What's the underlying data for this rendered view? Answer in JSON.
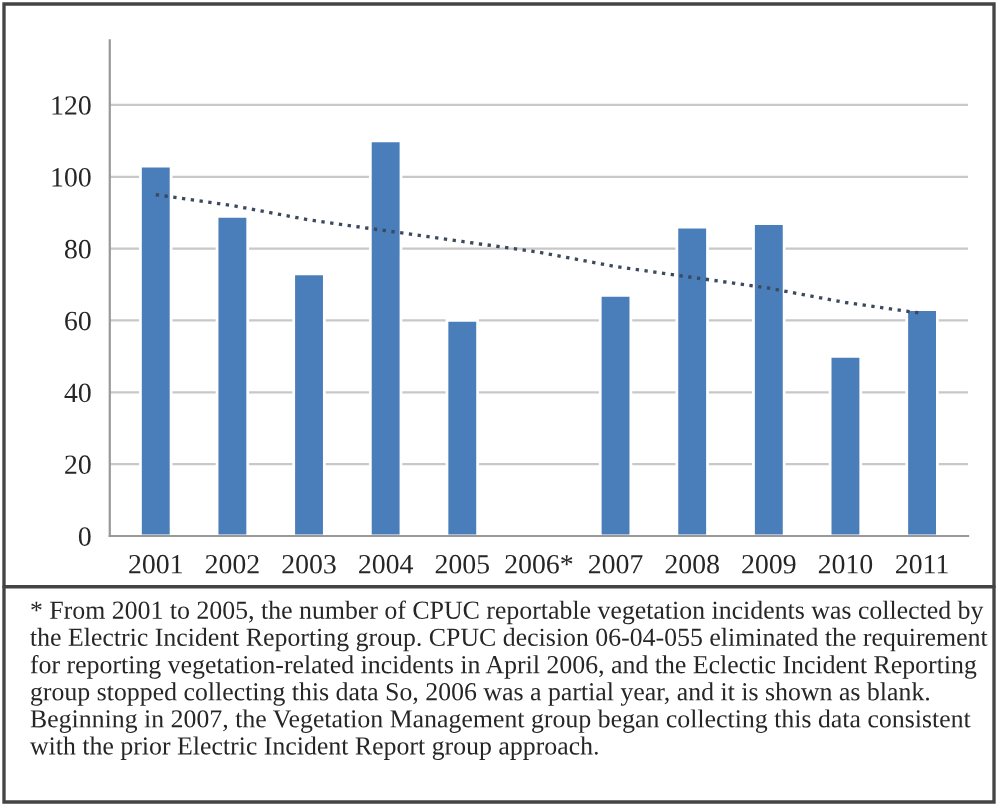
{
  "chart_data": {
    "type": "bar",
    "categories": [
      "2001",
      "2002",
      "2003",
      "2004",
      "2005",
      "2006*",
      "2007",
      "2008",
      "2009",
      "2010",
      "2011"
    ],
    "series": [
      {
        "color": "#4a7ebb",
        "values": [
          103,
          89,
          73,
          110,
          60,
          null,
          67,
          86,
          87,
          50,
          63
        ]
      },
      {
        "type": "line",
        "color": "#3b4a5e",
        "line_style": "dotted",
        "values": [
          95,
          92,
          88,
          85,
          82,
          79,
          75,
          72,
          69,
          65,
          62
        ]
      }
    ],
    "ylim": [
      0,
      138
    ],
    "yticks": [
      0,
      20,
      40,
      60,
      80,
      100,
      120
    ],
    "grid": "y",
    "legend": false,
    "annotations": [
      "* From 2001 to 2005, the number of CPUC reportable vegetation incidents was collected by the Electric Incident Reporting group. CPUC decision 06-04-055 eliminated the requirement for reporting vegetation-related incidents in April 2006, and the Eclectic Incident Reporting group stopped collecting this data So, 2006 was a partial year, and it is shown as blank. Beginning in 2007, the Vegetation Management group began collecting this data consistent with the prior Electric Incident Report group approach."
    ]
  }
}
